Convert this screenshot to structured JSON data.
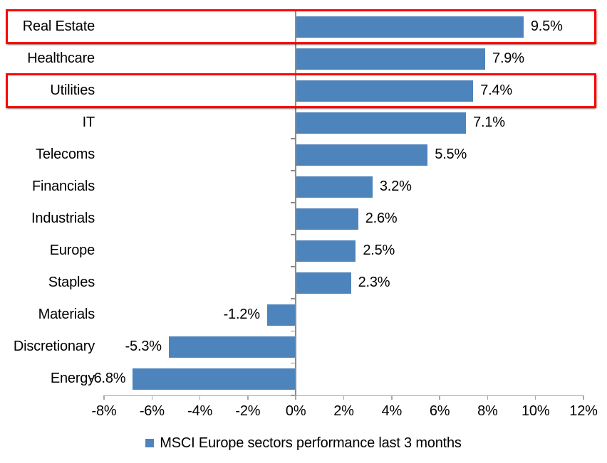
{
  "chart_data": {
    "type": "bar",
    "orientation": "horizontal",
    "categories": [
      "Real Estate",
      "Healthcare",
      "Utilities",
      "IT",
      "Telecoms",
      "Financials",
      "Industrials",
      "Europe",
      "Staples",
      "Materials",
      "Discretionary",
      "Energy"
    ],
    "values": [
      9.5,
      7.9,
      7.4,
      7.1,
      5.5,
      3.2,
      2.6,
      2.5,
      2.3,
      -1.2,
      -5.3,
      -6.8
    ],
    "value_labels": [
      "9.5%",
      "7.9%",
      "7.4%",
      "7.1%",
      "5.5%",
      "3.2%",
      "2.6%",
      "2.5%",
      "2.3%",
      "-1.2%",
      "-5.3%",
      "-6.8%"
    ],
    "xlim": [
      -8,
      12
    ],
    "x_tick_step": 2,
    "x_tick_labels": [
      "-8%",
      "-6%",
      "-4%",
      "-2%",
      "0%",
      "2%",
      "4%",
      "6%",
      "8%",
      "10%",
      "12%"
    ],
    "legend": "MSCI Europe sectors performance last 3 months",
    "legend_position": "bottom",
    "grid": false,
    "title": "",
    "bar_color": "#4E84BC",
    "axis_color": "#A6A6A6",
    "category_axis_color": "#8C8C8C",
    "text_color": "#000000",
    "highlight_color": "#FE0000",
    "highlighted_categories": [
      "Real Estate",
      "Utilities"
    ]
  }
}
